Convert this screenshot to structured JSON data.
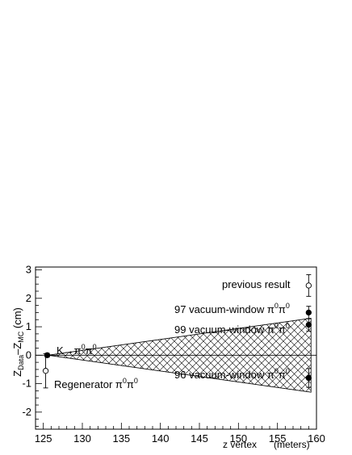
{
  "chart_data": {
    "type": "scatter",
    "xlabel": "z vertex",
    "xunit": "(meters)",
    "ylabel": {
      "main": "Z",
      "sub1": "Data",
      "dash": "–Z",
      "sub2": "MC",
      "unit": " (cm)"
    },
    "xlim": [
      124,
      160
    ],
    "ylim": [
      -2.6,
      3.1
    ],
    "x_ticks": [
      125,
      130,
      135,
      140,
      145,
      150,
      155,
      160
    ],
    "y_ticks": [
      -2,
      -1,
      0,
      1,
      2,
      3
    ],
    "zero_line": true,
    "band": {
      "description_hatch": true,
      "apex": [
        125.6,
        0
      ],
      "right_x": 159.3,
      "right_upper": 1.3,
      "right_lower": -1.3
    },
    "points": [
      {
        "x": 125.5,
        "y": 0.0,
        "err": 0.07,
        "filled": true
      },
      {
        "x": 125.3,
        "y": -0.55,
        "err": 0.6,
        "filled": false
      },
      {
        "x": 159.0,
        "y": 2.45,
        "err": 0.38,
        "filled": false
      },
      {
        "x": 159.0,
        "y": 1.5,
        "err": 0.22,
        "filled": true
      },
      {
        "x": 159.0,
        "y": 1.07,
        "err": 0.22,
        "filled": true
      },
      {
        "x": 159.0,
        "y": -0.8,
        "err": 0.33,
        "filled": true
      }
    ],
    "annotations": [
      {
        "id": "previous",
        "text": "previous result"
      },
      {
        "id": "vw97",
        "base": "97 vacuum-window π",
        "sup1": "0",
        "mid": "π",
        "sup2": "0"
      },
      {
        "id": "vw99",
        "base": "99 vacuum-window π",
        "sup1": "0",
        "mid": "π",
        "sup2": "0"
      },
      {
        "id": "vw96",
        "base": "96 vacuum-window π",
        "sup1": "0",
        "mid": "π",
        "sup2": "0"
      },
      {
        "id": "regen",
        "base": "Regenerator π",
        "sup1": "0",
        "mid": "π",
        "sup2": "0"
      },
      {
        "id": "kdecay",
        "base": "K→π",
        "sup1": "0",
        "mid": "π",
        "sup2": "0"
      }
    ]
  }
}
